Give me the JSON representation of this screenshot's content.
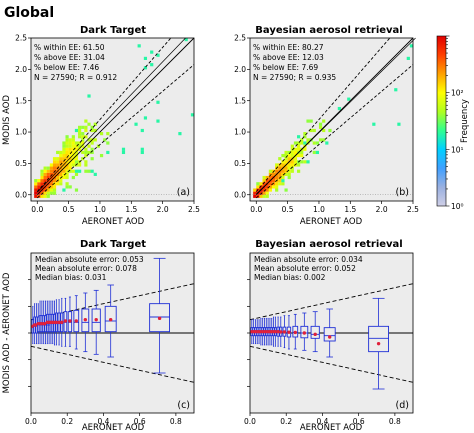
{
  "figure_title": "Global",
  "colorbar": {
    "label": "Frequency",
    "scale": "log",
    "ticks": [
      "10⁰",
      "10¹",
      "10²"
    ],
    "colors": [
      "#cfcfe6",
      "#9ab0e0",
      "#40a0ff",
      "#00d0ff",
      "#30ff90",
      "#b0ff20",
      "#ffff00",
      "#ffa000",
      "#ff4000",
      "#e00000"
    ]
  },
  "chart_data": [
    {
      "type": "heatmap",
      "panel_label": "(a)",
      "title": "Dark Target",
      "xlabel": "AERONET AOD",
      "ylabel": "MODIS AOD",
      "xlim": [
        -0.1,
        2.5
      ],
      "ylim": [
        -0.1,
        2.5
      ],
      "xticks": [
        "0.0",
        "0.5",
        "1.0",
        "1.5",
        "2.0",
        "2.5"
      ],
      "yticks": [
        "0.0",
        "0.5",
        "1.0",
        "1.5",
        "2.0",
        "2.5"
      ],
      "stats": [
        "% within EE: 61.50",
        "% above EE: 31.04",
        "% below EE: 7.46",
        "N = 27590; R = 0.912"
      ],
      "lines": [
        "1:1 line",
        "expected error envelope",
        "regression line"
      ],
      "grid": false
    },
    {
      "type": "heatmap",
      "panel_label": "(b)",
      "title": "Bayesian aerosol retrieval",
      "xlabel": "AERONET AOD",
      "ylabel": "",
      "xlim": [
        -0.1,
        2.5
      ],
      "ylim": [
        -0.1,
        2.5
      ],
      "xticks": [
        "0.0",
        "0.5",
        "1.0",
        "1.5",
        "2.0",
        "2.5"
      ],
      "yticks": [
        "0.0",
        "0.5",
        "1.0",
        "1.5",
        "2.0",
        "2.5"
      ],
      "stats": [
        "% within EE: 80.27",
        "% above EE: 12.03",
        "% below EE: 7.69",
        "N = 27590; R = 0.935"
      ],
      "lines": [
        "1:1 line",
        "expected error envelope",
        "regression line"
      ],
      "grid": false
    },
    {
      "type": "box",
      "panel_label": "(c)",
      "title": "Dark Target",
      "xlabel": "AERONET AOD",
      "ylabel": "MODIS AOD - AERONET AOD",
      "xlim": [
        0.0,
        0.9
      ],
      "ylim": [
        -0.3,
        0.3
      ],
      "xticks": [
        "0.0",
        "0.2",
        "0.4",
        "0.6",
        "0.8"
      ],
      "stats": [
        "Median absolute error: 0.053",
        "Mean absolute error: 0.078",
        "Median bias: 0.031"
      ],
      "envelope": "EE = ±(0.05 + 0.15 · AOD)",
      "boxes": [
        {
          "x": 0.01,
          "q1": 0.0,
          "median": 0.02,
          "q3": 0.05,
          "low": -0.04,
          "high": 0.1,
          "mean": 0.025
        },
        {
          "x": 0.02,
          "q1": 0.0,
          "median": 0.025,
          "q3": 0.06,
          "low": -0.04,
          "high": 0.11,
          "mean": 0.03
        },
        {
          "x": 0.03,
          "q1": 0.0,
          "median": 0.03,
          "q3": 0.06,
          "low": -0.04,
          "high": 0.11,
          "mean": 0.03
        },
        {
          "x": 0.04,
          "q1": 0.005,
          "median": 0.03,
          "q3": 0.06,
          "low": -0.04,
          "high": 0.11,
          "mean": 0.035
        },
        {
          "x": 0.05,
          "q1": 0.005,
          "median": 0.03,
          "q3": 0.065,
          "low": -0.04,
          "high": 0.12,
          "mean": 0.035
        },
        {
          "x": 0.06,
          "q1": 0.005,
          "median": 0.03,
          "q3": 0.065,
          "low": -0.04,
          "high": 0.12,
          "mean": 0.035
        },
        {
          "x": 0.07,
          "q1": 0.005,
          "median": 0.03,
          "q3": 0.065,
          "low": -0.04,
          "high": 0.12,
          "mean": 0.035
        },
        {
          "x": 0.08,
          "q1": 0.005,
          "median": 0.03,
          "q3": 0.065,
          "low": -0.04,
          "high": 0.12,
          "mean": 0.035
        },
        {
          "x": 0.09,
          "q1": 0.005,
          "median": 0.03,
          "q3": 0.07,
          "low": -0.04,
          "high": 0.12,
          "mean": 0.04
        },
        {
          "x": 0.1,
          "q1": 0.005,
          "median": 0.03,
          "q3": 0.07,
          "low": -0.04,
          "high": 0.12,
          "mean": 0.04
        },
        {
          "x": 0.11,
          "q1": 0.005,
          "median": 0.035,
          "q3": 0.07,
          "low": -0.04,
          "high": 0.12,
          "mean": 0.04
        },
        {
          "x": 0.12,
          "q1": 0.005,
          "median": 0.035,
          "q3": 0.07,
          "low": -0.04,
          "high": 0.12,
          "mean": 0.04
        },
        {
          "x": 0.13,
          "q1": 0.005,
          "median": 0.035,
          "q3": 0.07,
          "low": -0.045,
          "high": 0.12,
          "mean": 0.04
        },
        {
          "x": 0.14,
          "q1": 0.005,
          "median": 0.035,
          "q3": 0.075,
          "low": -0.045,
          "high": 0.125,
          "mean": 0.04
        },
        {
          "x": 0.155,
          "q1": 0.005,
          "median": 0.035,
          "q3": 0.075,
          "low": -0.045,
          "high": 0.125,
          "mean": 0.04
        },
        {
          "x": 0.17,
          "q1": 0.005,
          "median": 0.035,
          "q3": 0.075,
          "low": -0.05,
          "high": 0.13,
          "mean": 0.04
        },
        {
          "x": 0.19,
          "q1": 0.005,
          "median": 0.04,
          "q3": 0.08,
          "low": -0.05,
          "high": 0.13,
          "mean": 0.045
        },
        {
          "x": 0.215,
          "q1": 0.005,
          "median": 0.04,
          "q3": 0.08,
          "low": -0.05,
          "high": 0.135,
          "mean": 0.045
        },
        {
          "x": 0.25,
          "q1": 0.005,
          "median": 0.04,
          "q3": 0.085,
          "low": -0.06,
          "high": 0.14,
          "mean": 0.045
        },
        {
          "x": 0.3,
          "q1": 0.005,
          "median": 0.04,
          "q3": 0.09,
          "low": -0.07,
          "high": 0.15,
          "mean": 0.05
        },
        {
          "x": 0.36,
          "q1": 0.005,
          "median": 0.04,
          "q3": 0.09,
          "low": -0.08,
          "high": 0.16,
          "mean": 0.05
        },
        {
          "x": 0.44,
          "q1": 0.005,
          "median": 0.045,
          "q3": 0.1,
          "low": -0.09,
          "high": 0.18,
          "mean": 0.05
        },
        {
          "x": 0.71,
          "q1": 0.005,
          "median": 0.06,
          "q3": 0.11,
          "low": -0.15,
          "high": 0.28,
          "mean": 0.055
        }
      ]
    },
    {
      "type": "box",
      "panel_label": "(d)",
      "title": "Bayesian aerosol retrieval",
      "xlabel": "AERONET AOD",
      "ylabel": "",
      "xlim": [
        0.0,
        0.9
      ],
      "ylim": [
        -0.3,
        0.3
      ],
      "xticks": [
        "0.0",
        "0.2",
        "0.4",
        "0.6",
        "0.8"
      ],
      "stats": [
        "Median absolute error: 0.034",
        "Mean absolute error: 0.052",
        "Median bias: 0.002"
      ],
      "envelope": "EE = ±(0.05 + 0.15 · AOD)",
      "boxes": [
        {
          "x": 0.01,
          "q1": -0.01,
          "median": 0.005,
          "q3": 0.02,
          "low": -0.04,
          "high": 0.05,
          "mean": 0.005
        },
        {
          "x": 0.02,
          "q1": -0.01,
          "median": 0.005,
          "q3": 0.02,
          "low": -0.04,
          "high": 0.05,
          "mean": 0.005
        },
        {
          "x": 0.03,
          "q1": -0.01,
          "median": 0.005,
          "q3": 0.02,
          "low": -0.04,
          "high": 0.05,
          "mean": 0.005
        },
        {
          "x": 0.04,
          "q1": -0.01,
          "median": 0.005,
          "q3": 0.02,
          "low": -0.04,
          "high": 0.05,
          "mean": 0.005
        },
        {
          "x": 0.05,
          "q1": -0.01,
          "median": 0.005,
          "q3": 0.02,
          "low": -0.04,
          "high": 0.05,
          "mean": 0.005
        },
        {
          "x": 0.06,
          "q1": -0.01,
          "median": 0.005,
          "q3": 0.02,
          "low": -0.045,
          "high": 0.055,
          "mean": 0.005
        },
        {
          "x": 0.07,
          "q1": -0.01,
          "median": 0.005,
          "q3": 0.02,
          "low": -0.045,
          "high": 0.055,
          "mean": 0.005
        },
        {
          "x": 0.08,
          "q1": -0.01,
          "median": 0.005,
          "q3": 0.02,
          "low": -0.045,
          "high": 0.055,
          "mean": 0.005
        },
        {
          "x": 0.09,
          "q1": -0.01,
          "median": 0.005,
          "q3": 0.02,
          "low": -0.045,
          "high": 0.055,
          "mean": 0.005
        },
        {
          "x": 0.1,
          "q1": -0.01,
          "median": 0.005,
          "q3": 0.02,
          "low": -0.045,
          "high": 0.055,
          "mean": 0.005
        },
        {
          "x": 0.11,
          "q1": -0.01,
          "median": 0.005,
          "q3": 0.02,
          "low": -0.045,
          "high": 0.055,
          "mean": 0.005
        },
        {
          "x": 0.12,
          "q1": -0.01,
          "median": 0.005,
          "q3": 0.02,
          "low": -0.045,
          "high": 0.055,
          "mean": 0.005
        },
        {
          "x": 0.13,
          "q1": -0.01,
          "median": 0.005,
          "q3": 0.02,
          "low": -0.05,
          "high": 0.06,
          "mean": 0.005
        },
        {
          "x": 0.14,
          "q1": -0.01,
          "median": 0.005,
          "q3": 0.02,
          "low": -0.05,
          "high": 0.06,
          "mean": 0.005
        },
        {
          "x": 0.155,
          "q1": -0.012,
          "median": 0.005,
          "q3": 0.022,
          "low": -0.05,
          "high": 0.06,
          "mean": 0.005
        },
        {
          "x": 0.17,
          "q1": -0.012,
          "median": 0.004,
          "q3": 0.022,
          "low": -0.05,
          "high": 0.06,
          "mean": 0.004
        },
        {
          "x": 0.19,
          "q1": -0.012,
          "median": 0.004,
          "q3": 0.022,
          "low": -0.055,
          "high": 0.065,
          "mean": 0.004
        },
        {
          "x": 0.215,
          "q1": -0.015,
          "median": 0.003,
          "q3": 0.022,
          "low": -0.06,
          "high": 0.065,
          "mean": 0.003
        },
        {
          "x": 0.25,
          "q1": -0.015,
          "median": 0.002,
          "q3": 0.025,
          "low": -0.06,
          "high": 0.07,
          "mean": 0.002
        },
        {
          "x": 0.3,
          "q1": -0.018,
          "median": 0.0,
          "q3": 0.025,
          "low": -0.065,
          "high": 0.075,
          "mean": 0.0
        },
        {
          "x": 0.36,
          "q1": -0.02,
          "median": -0.005,
          "q3": 0.025,
          "low": -0.07,
          "high": 0.08,
          "mean": -0.005
        },
        {
          "x": 0.44,
          "q1": -0.03,
          "median": -0.01,
          "q3": 0.02,
          "low": -0.09,
          "high": 0.09,
          "mean": -0.015
        },
        {
          "x": 0.71,
          "q1": -0.07,
          "median": -0.02,
          "q3": 0.025,
          "low": -0.21,
          "high": 0.13,
          "mean": -0.04
        }
      ]
    }
  ]
}
